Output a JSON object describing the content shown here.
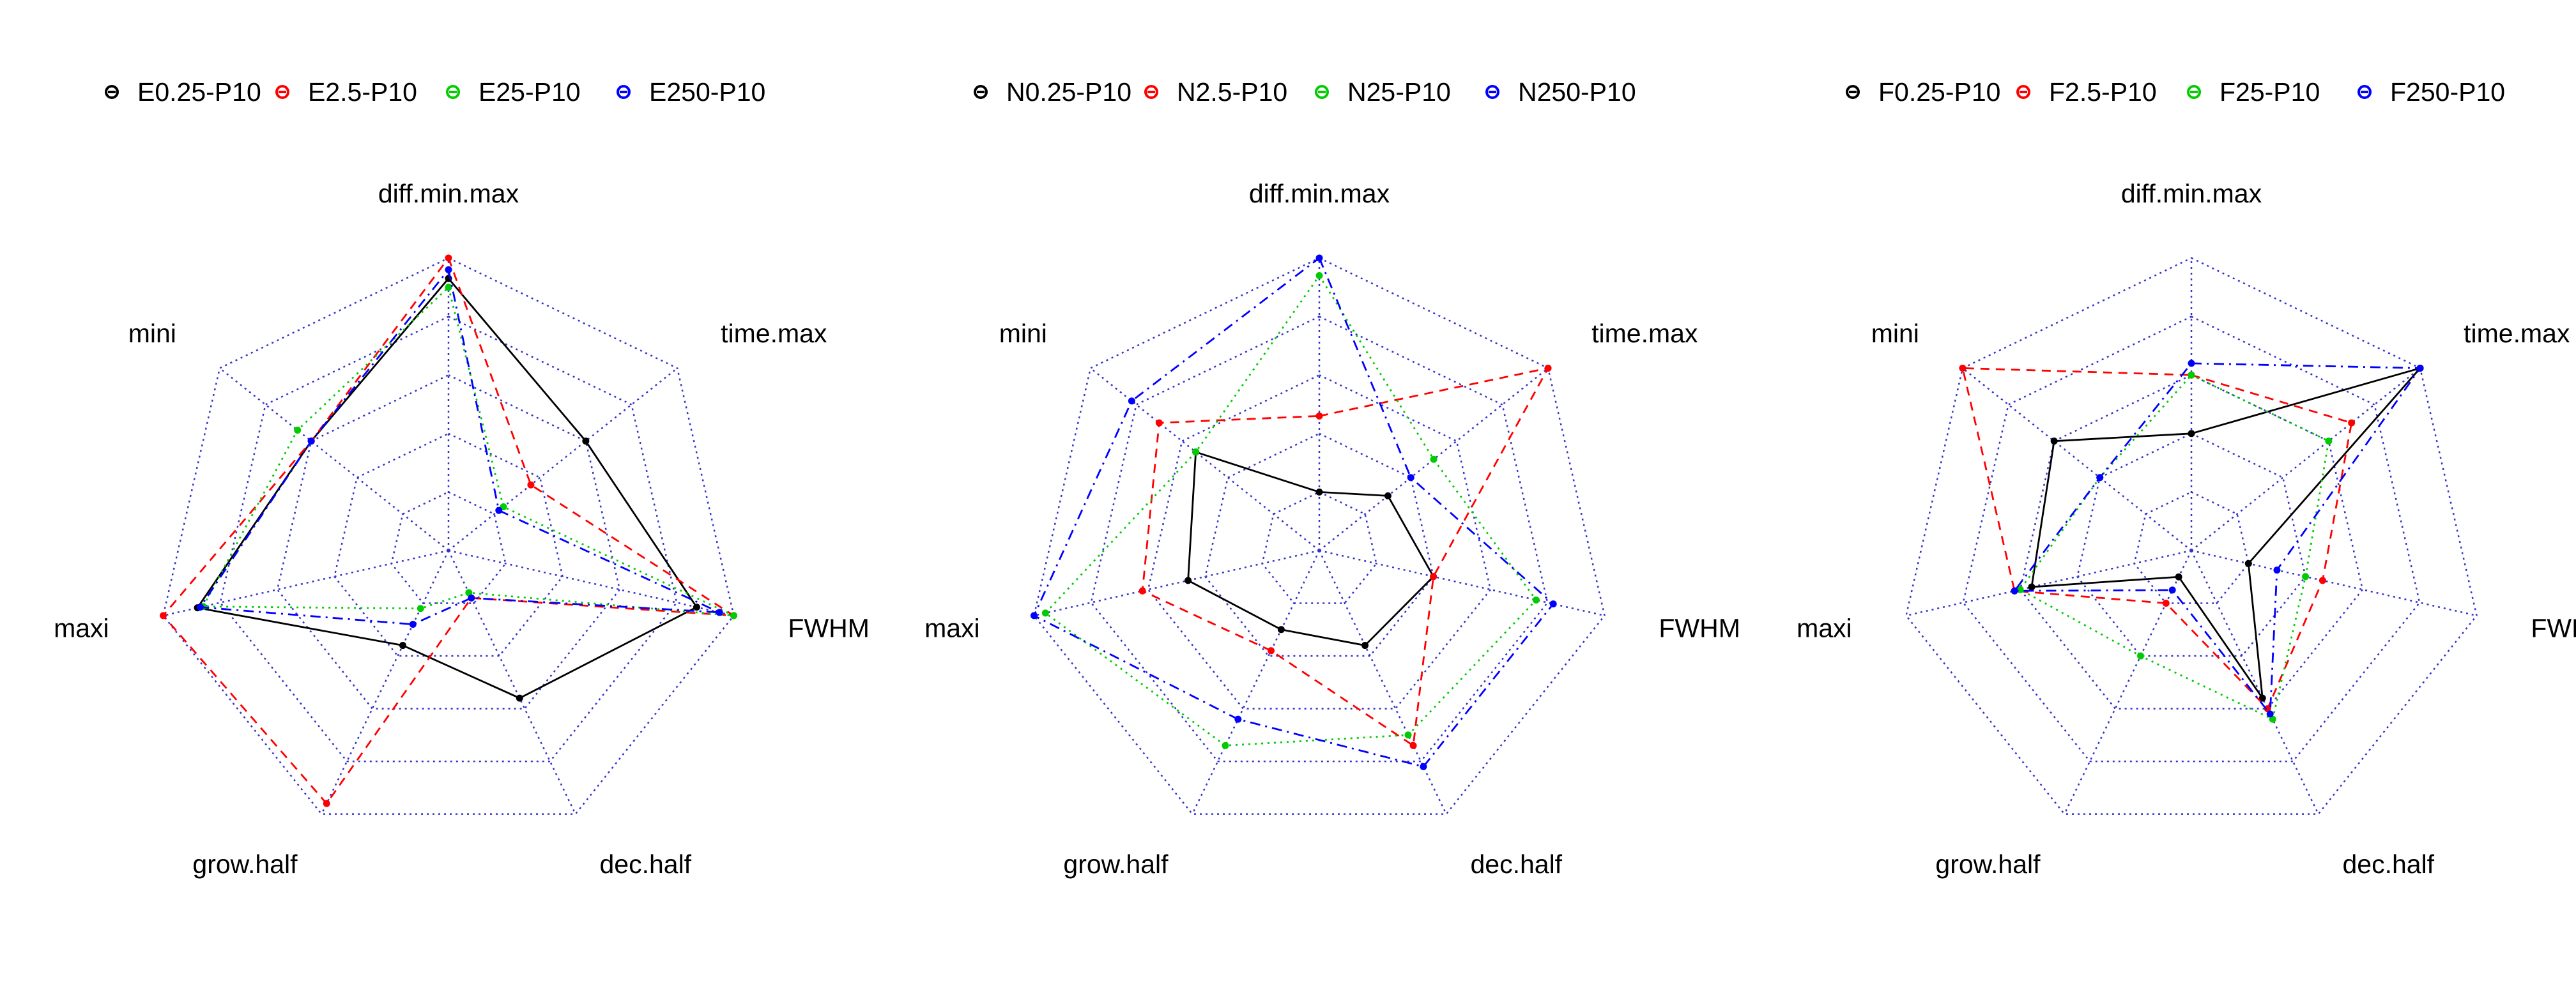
{
  "chart_data": [
    {
      "type": "radar",
      "axes": [
        "diff.min.max",
        "time.max",
        "FWHM",
        "dec.half",
        "grow.half",
        "maxi",
        "mini"
      ],
      "axis_range": [
        0,
        1
      ],
      "grid_levels": 5,
      "grid": true,
      "legend_position": "top",
      "series": [
        {
          "name": "E0.25-P10",
          "color": "#000000",
          "line": "solid",
          "values": [
            0.93,
            0.6,
            0.87,
            0.56,
            0.36,
            0.88,
            0.6
          ]
        },
        {
          "name": "E2.5-P10",
          "color": "#ff0000",
          "line": "dashed",
          "values": [
            1.0,
            0.36,
            1.0,
            0.18,
            0.96,
            1.0,
            0.6
          ]
        },
        {
          "name": "E25-P10",
          "color": "#00cc00",
          "line": "dotted",
          "values": [
            0.9,
            0.24,
            1.0,
            0.16,
            0.22,
            0.86,
            0.66
          ]
        },
        {
          "name": "E250-P10",
          "color": "#0000ff",
          "line": "dotdash",
          "values": [
            0.96,
            0.22,
            0.95,
            0.18,
            0.28,
            0.87,
            0.6
          ]
        }
      ]
    },
    {
      "type": "radar",
      "axes": [
        "diff.min.max",
        "time.max",
        "FWHM",
        "dec.half",
        "grow.half",
        "maxi",
        "mini"
      ],
      "axis_range": [
        0,
        1
      ],
      "grid_levels": 5,
      "grid": true,
      "legend_position": "top",
      "series": [
        {
          "name": "N0.25-P10",
          "color": "#000000",
          "line": "solid",
          "values": [
            0.2,
            0.3,
            0.4,
            0.36,
            0.3,
            0.46,
            0.54
          ]
        },
        {
          "name": "N2.5-P10",
          "color": "#ff0000",
          "line": "dashed",
          "values": [
            0.46,
            1.0,
            0.4,
            0.74,
            0.38,
            0.62,
            0.7
          ]
        },
        {
          "name": "N25-P10",
          "color": "#00cc00",
          "line": "dotted",
          "values": [
            0.94,
            0.5,
            0.76,
            0.7,
            0.74,
            0.96,
            0.54
          ]
        },
        {
          "name": "N250-P10",
          "color": "#0000ff",
          "line": "dotdash",
          "values": [
            1.0,
            0.4,
            0.82,
            0.82,
            0.64,
            1.0,
            0.82
          ]
        }
      ]
    },
    {
      "type": "radar",
      "axes": [
        "diff.min.max",
        "time.max",
        "FWHM",
        "dec.half",
        "grow.half",
        "maxi",
        "mini"
      ],
      "axis_range": [
        0,
        1
      ],
      "grid_levels": 5,
      "grid": true,
      "legend_position": "top",
      "series": [
        {
          "name": "F0.25-P10",
          "color": "#000000",
          "line": "solid",
          "values": [
            0.4,
            1.0,
            0.2,
            0.56,
            0.1,
            0.56,
            0.6
          ]
        },
        {
          "name": "F2.5-P10",
          "color": "#ff0000",
          "line": "dashed",
          "values": [
            0.6,
            0.7,
            0.46,
            0.6,
            0.2,
            0.62,
            1.0
          ]
        },
        {
          "name": "F25-P10",
          "color": "#00cc00",
          "line": "dotted",
          "values": [
            0.6,
            0.6,
            0.4,
            0.64,
            0.4,
            0.6,
            0.4
          ]
        },
        {
          "name": "F250-P10",
          "color": "#0000ff",
          "line": "dotdash",
          "values": [
            0.64,
            1.0,
            0.3,
            0.62,
            0.15,
            0.62,
            0.4
          ]
        }
      ]
    }
  ]
}
